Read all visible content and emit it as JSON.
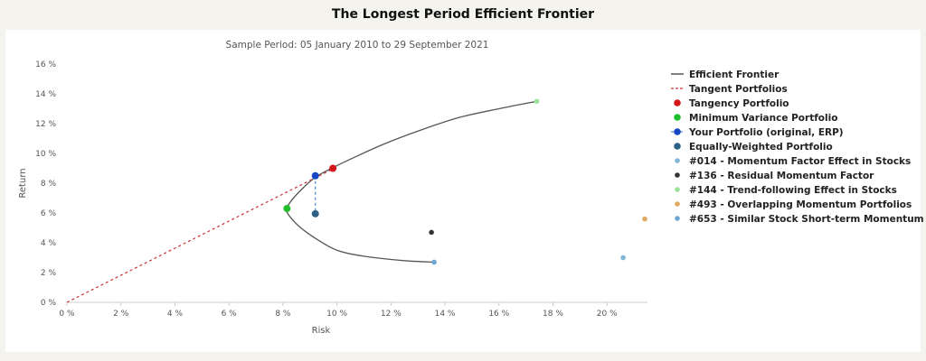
{
  "page_title": "The Longest Period Efficient Frontier",
  "chart_data": {
    "type": "scatter",
    "title": "The Longest Period Efficient Frontier",
    "subtitle": "Sample Period: 05 January 2010 to 29 September 2021",
    "xlabel": "Risk",
    "ylabel": "Return",
    "xlim": [
      0,
      21.5
    ],
    "ylim": [
      0,
      16
    ],
    "x_ticks": [
      0,
      2,
      4,
      6,
      8,
      10,
      12,
      14,
      16,
      18,
      20
    ],
    "y_ticks": [
      0,
      2,
      4,
      6,
      8,
      10,
      12,
      14,
      16
    ],
    "tick_suffix": " %",
    "grid": false,
    "legend_position": "right",
    "series": [
      {
        "name": "Efficient Frontier",
        "kind": "line",
        "color": "#555555",
        "points": [
          [
            13.6,
            2.7
          ],
          [
            12.5,
            2.8
          ],
          [
            11.0,
            3.1
          ],
          [
            10.0,
            3.5
          ],
          [
            9.2,
            4.3
          ],
          [
            8.6,
            5.1
          ],
          [
            8.2,
            5.9
          ],
          [
            8.15,
            6.3
          ],
          [
            8.3,
            6.8
          ],
          [
            8.7,
            7.6
          ],
          [
            9.2,
            8.4
          ],
          [
            9.8,
            9.0
          ],
          [
            10.6,
            9.7
          ],
          [
            11.7,
            10.6
          ],
          [
            13.0,
            11.5
          ],
          [
            14.5,
            12.4
          ],
          [
            16.0,
            13.0
          ],
          [
            17.4,
            13.5
          ]
        ]
      },
      {
        "name": "Tangent Portfolios",
        "kind": "dashed-line",
        "color": "#cc3333",
        "points": [
          [
            0,
            0
          ],
          [
            9.9,
            9.0
          ]
        ]
      },
      {
        "name": "Tangency Portfolio",
        "kind": "point",
        "color": "#d3161c",
        "size": "large",
        "points": [
          [
            9.85,
            9.0
          ]
        ]
      },
      {
        "name": "Minimum Variance Portfolio",
        "kind": "point",
        "color": "#1fbf2c",
        "size": "large",
        "points": [
          [
            8.15,
            6.3
          ]
        ]
      },
      {
        "name": "Your Portfolio (original, ERP)",
        "kind": "point-dashed",
        "color": "#1546c4",
        "size": "large",
        "points": [
          [
            9.2,
            8.5
          ],
          [
            9.2,
            5.95
          ]
        ]
      },
      {
        "name": "Equally-Weighted Portfolio",
        "kind": "point",
        "color": "#2f6187",
        "size": "large",
        "points": [
          [
            9.2,
            5.95
          ]
        ]
      },
      {
        "name": "#014 - Momentum Factor Effect in Stocks",
        "kind": "point",
        "color": "#7fb6d8",
        "size": "small",
        "points": [
          [
            20.6,
            3.0
          ]
        ]
      },
      {
        "name": "#136 - Residual Momentum Factor",
        "kind": "point",
        "color": "#333333",
        "size": "small",
        "points": [
          [
            13.5,
            4.7
          ]
        ]
      },
      {
        "name": "#144 - Trend-following Effect in Stocks",
        "kind": "point",
        "color": "#9be29a",
        "size": "small",
        "points": [
          [
            17.4,
            13.5
          ]
        ]
      },
      {
        "name": "#493 - Overlapping Momentum Portfolios",
        "kind": "point",
        "color": "#e0a964",
        "size": "small",
        "points": [
          [
            21.4,
            5.6
          ]
        ]
      },
      {
        "name": "#653 - Similar Stock Short-term Momentum",
        "kind": "point",
        "color": "#6ea6d2",
        "size": "small",
        "points": [
          [
            13.6,
            2.7
          ]
        ]
      }
    ]
  }
}
